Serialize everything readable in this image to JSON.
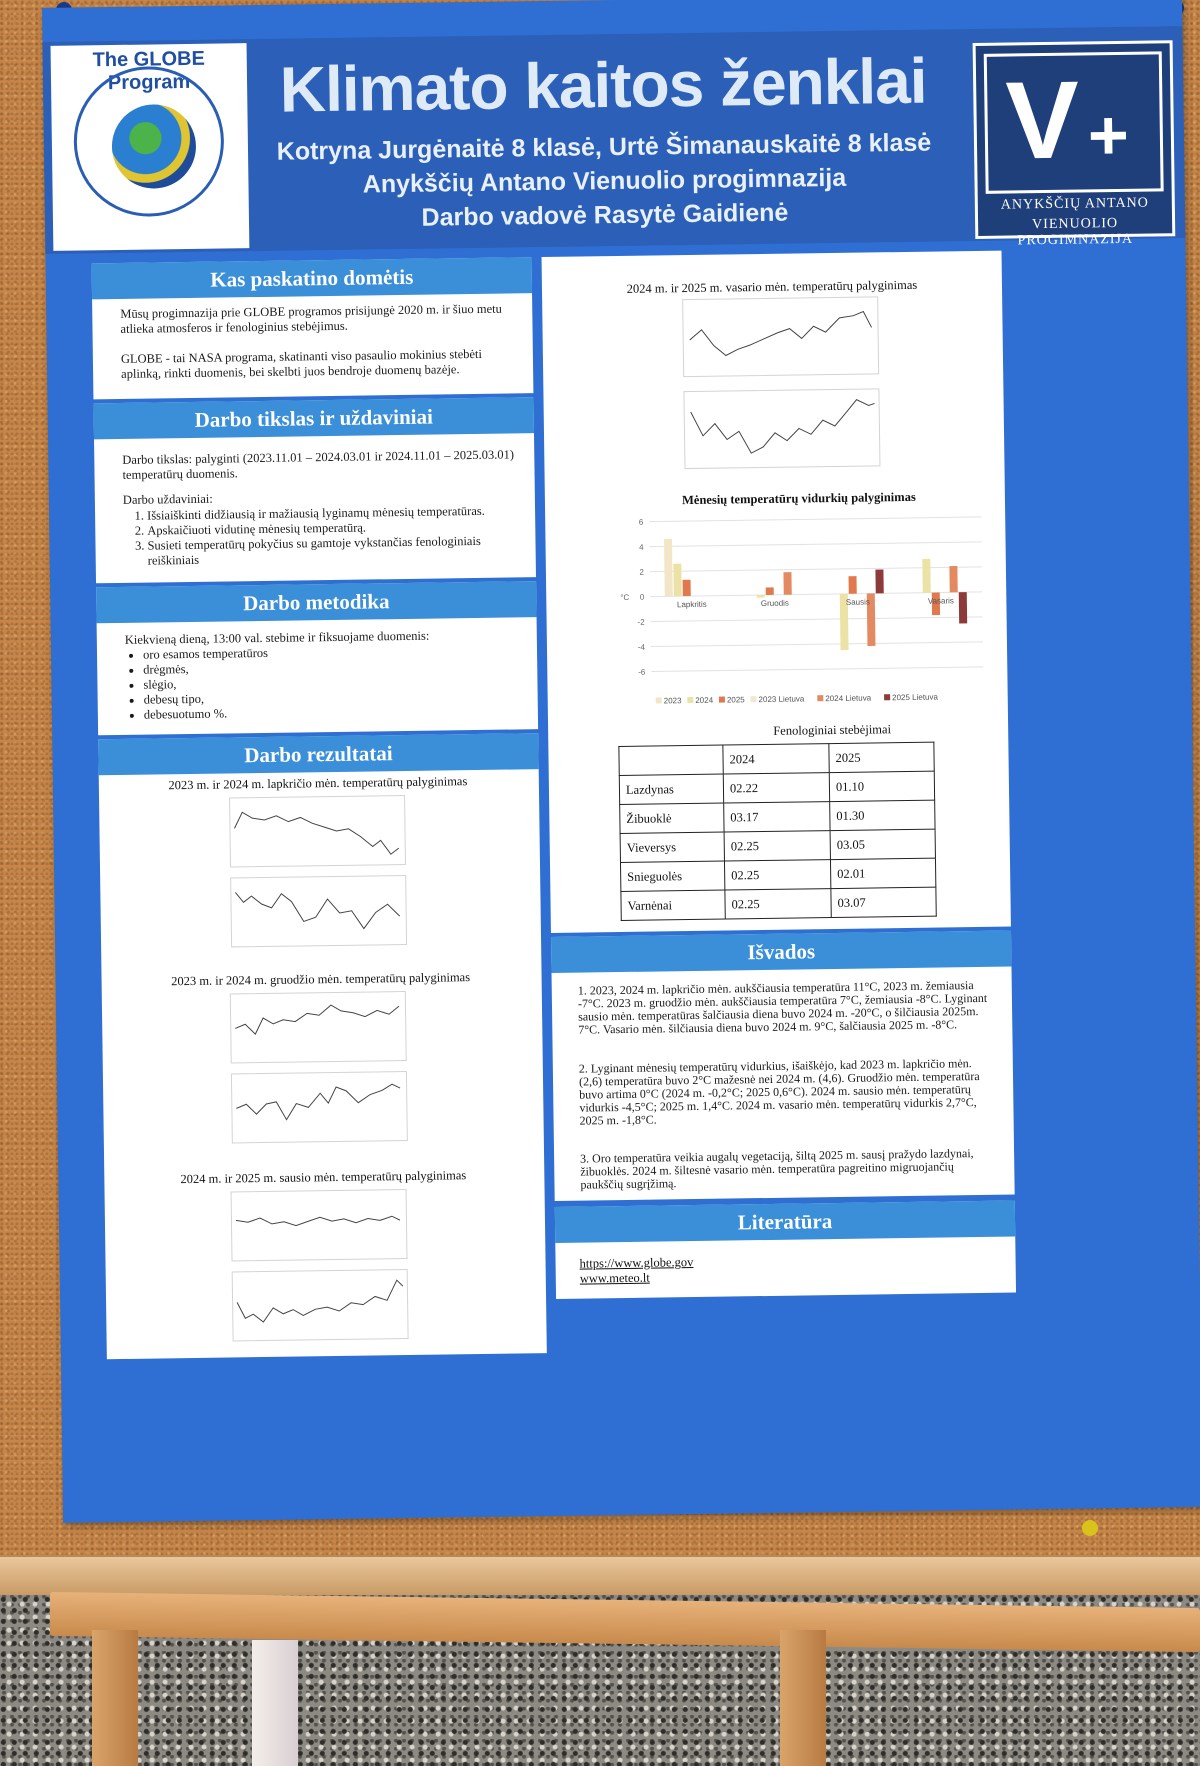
{
  "header": {
    "title": "Klimato kaitos ženklai",
    "authors": "Kotryna Jurgėnaitė 8 klasė, Urtė Šimanauskaitė 8 klasė",
    "school": "Anykščių Antano Vienuolio progimnazija",
    "supervisor": "Darbo vadovė Rasytė Gaidienė",
    "left_logo_text": "The GLOBE Program",
    "right_logo_line1": "ANYKŠČIŲ ANTANO",
    "right_logo_line2": "VIENUOLIO PROGIMNAZIJA"
  },
  "sections": {
    "why": {
      "heading": "Kas paskatino domėtis",
      "p1": "Mūsų progimnazija prie GLOBE programos prisijungė 2020 m. ir šiuo metu atlieka atmosferos ir fenologinius stebėjimus.",
      "p2": "GLOBE - tai NASA programa, skatinanti viso pasaulio mokinius stebėti aplinką, rinkti duomenis, bei skelbti juos bendroje duomenų bazėje."
    },
    "goal": {
      "heading": "Darbo tikslas ir uždaviniai",
      "aim": "Darbo tikslas: palyginti (2023.11.01 – 2024.03.01 ir 2024.11.01 – 2025.03.01) temperatūrų duomenis.",
      "tasks_label": "Darbo uždaviniai:",
      "tasks": [
        "Išsiaiškinti didžiausią ir mažiausią lyginamų mėnesių temperatūras.",
        "Apskaičiuoti vidutinę mėnesių temperatūrą.",
        "Susieti temperatūrų pokyčius su gamtoje vykstančias fenologiniais reiškiniais"
      ]
    },
    "method": {
      "heading": "Darbo metodika",
      "intro": "Kiekvieną dieną, 13:00 val. stebime ir fiksuojame duomenis:",
      "items": [
        "oro esamos temperatūros",
        "drėgmės,",
        "slėgio,",
        "debesų tipo,",
        "debesuotumo %."
      ]
    },
    "results": {
      "heading": "Darbo rezultatai",
      "cap_nov": "2023 m. ir 2024 m. lapkričio mėn. temperatūrų palyginimas",
      "cap_dec": "2023 m. ir 2024 m. gruodžio mėn. temperatūrų palyginimas",
      "cap_jan": "2024 m. ir 2025 m. sausio mėn. temperatūrų palyginimas",
      "cap_feb": "2024 m. ir 2025 m. vasario  mėn. temperatūrų palyginimas"
    },
    "pheno": {
      "caption": "Fenologiniai stebėjimai",
      "col_headers": [
        "",
        "2024",
        "2025"
      ],
      "rows": [
        [
          "Lazdynas",
          "02.22",
          "01.10"
        ],
        [
          "Žibuoklė",
          "03.17",
          "01.30"
        ],
        [
          "Vieversys",
          "02.25",
          "03.05"
        ],
        [
          "Snieguolės",
          "02.25",
          "02.01"
        ],
        [
          "Varnėnai",
          "02.25",
          "03.07"
        ]
      ]
    },
    "conclusions": {
      "heading": "Išvados",
      "c1": "1. 2023, 2024 m. lapkričio mėn. aukščiausia temperatūra 11°C, 2023 m. žemiausia -7°C. 2023 m. gruodžio mėn. aukščiausia temperatūra 7°C, žemiausia -8°C. Lyginant sausio mėn. temperatūras šalčiausia diena buvo 2024 m. -20°C, o šilčiausia 2025m. 7°C. Vasario mėn. šilčiausia diena buvo 2024 m. 9°C, šalčiausia 2025 m. -8°C.",
      "c2": "2.  Lyginant mėnesių temperatūrų vidurkius, išaiškėjo, kad 2023 m. lapkričio mėn.      (2,6) temperatūra buvo 2°C mažesnė nei 2024 m. (4,6). Gruodžio mėn. temperatūra buvo artima 0°C (2024 m. -0,2°C; 2025 0,6°C). 2024 m. sausio mėn. temperatūrų vidurkis -4,5°C; 2025 m. 1,4°C. 2024 m. vasario mėn. temperatūrų vidurkis 2,7°C, 2025 m. -1,8°C.",
      "c3": "3. Oro temperatūra veikia augalų vegetaciją, šiltą 2025 m. sausį pražydo lazdynai, žibuoklės. 2024 m. šiltesnė vasario mėn. temperatūra pagreitino migruojančių paukščių sugrįžimą."
    },
    "literature": {
      "heading": "Literatūra",
      "link1": "https://www.globe.gov",
      "link2": "www.meteo.lt"
    }
  },
  "chart_data": {
    "type": "bar",
    "title": "Mėnesių temperatūrų vidurkių palyginimas",
    "ylabel": "°C",
    "ylim": [
      -6,
      6
    ],
    "yticks": [
      "6",
      "4",
      "2",
      "0",
      "-2",
      "-4",
      "-6"
    ],
    "categories": [
      "Lapkritis",
      "Gruodis",
      "Sausis",
      "Vasaris"
    ],
    "series": [
      {
        "name": "2023",
        "color": "#f3e6c8",
        "values": [
          4.6,
          null,
          null,
          null
        ]
      },
      {
        "name": "2024",
        "color": "#ece2a6",
        "values": [
          2.6,
          -0.2,
          -4.5,
          2.7
        ]
      },
      {
        "name": "2025",
        "color": "#e07a4e",
        "values": [
          1.3,
          0.6,
          1.4,
          -1.8
        ]
      },
      {
        "name": "2023 Lietuva",
        "color": "#f1e9d4",
        "values": [
          null,
          null,
          null,
          null
        ]
      },
      {
        "name": "2024 Lietuva",
        "color": "#e38a63",
        "values": [
          null,
          1.8,
          -4.2,
          2.1
        ]
      },
      {
        "name": "2025 Lietuva",
        "color": "#8c3a3a",
        "values": [
          null,
          null,
          1.9,
          -2.5
        ]
      }
    ]
  }
}
